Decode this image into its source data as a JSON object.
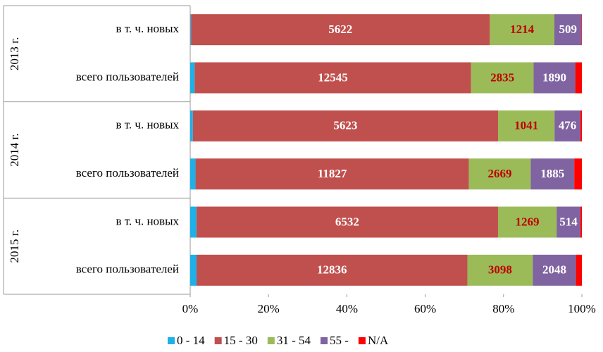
{
  "chart_data": {
    "type": "stacked_bar_percent",
    "orientation": "horizontal",
    "groups": [
      "2013 г.",
      "2014 г.",
      "2015 г."
    ],
    "categories": [
      "в т. ч. новых",
      "всего пользователей",
      "в т. ч. новых",
      "всего пользователей",
      "в т. ч. новых",
      "всего пользователей"
    ],
    "series": [
      {
        "name": "0 - 14",
        "color": "#1fb0e8",
        "values": [
          15,
          200,
          50,
          230,
          135,
          300
        ],
        "labels": false
      },
      {
        "name": "15 - 30",
        "color": "#c0504d",
        "values": [
          5622,
          12545,
          5623,
          11827,
          6532,
          12836
        ],
        "labels": true,
        "label_color": "#ffffff"
      },
      {
        "name": "31 - 54",
        "color": "#9bbb59",
        "values": [
          1214,
          2835,
          1041,
          2669,
          1269,
          3098
        ],
        "labels": true,
        "label_color": "#c00000"
      },
      {
        "name": "55 -",
        "color": "#8064a2",
        "values": [
          509,
          1890,
          476,
          1885,
          514,
          2048
        ],
        "labels": true,
        "label_color": "#ffffff"
      },
      {
        "name": "N/A",
        "color": "#ff0000",
        "values": [
          8,
          300,
          28,
          330,
          33,
          280
        ],
        "labels": false
      }
    ],
    "xlim": [
      0,
      100
    ],
    "xticks": [
      {
        "value": 0,
        "label": "0%"
      },
      {
        "value": 20,
        "label": "20%"
      },
      {
        "value": 40,
        "label": "40%"
      },
      {
        "value": 60,
        "label": "60%"
      },
      {
        "value": 80,
        "label": "80%"
      },
      {
        "value": 100,
        "label": "100%"
      }
    ],
    "legend": "bottom"
  }
}
